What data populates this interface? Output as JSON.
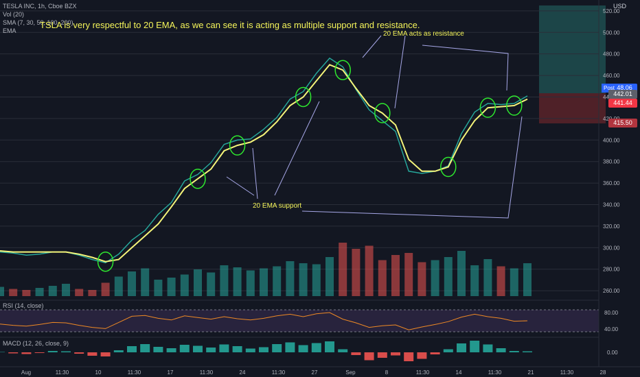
{
  "header": {
    "symbol_line": "TESLA INC, 1h, Cboe BZX",
    "vol_label": "Vol (20)",
    "sma_label": "SMA (7, 30, 50, 100, 200)",
    "ema_label": "EMA"
  },
  "annotations": {
    "title": "TSLA is very respectful to 20 EMA, as we can see it is acting as multiple support and resistance.",
    "resistance": "20 EMA acts as resistance",
    "support": "20 EMA support"
  },
  "price_axis": {
    "currency": "USD",
    "ticks": [
      "520.00",
      "500.00",
      "480.00",
      "460.00",
      "440.00",
      "420.00",
      "400.00",
      "380.00",
      "360.00",
      "340.00",
      "320.00",
      "300.00",
      "280.00",
      "260.00"
    ]
  },
  "price_tags": [
    {
      "label": "Post",
      "value": "448.06",
      "color": "#2962ff"
    },
    {
      "label": "",
      "value": "442.01",
      "color": "#5d606b"
    },
    {
      "label": "",
      "value": "441.44",
      "color": "#f23645"
    },
    {
      "label": "",
      "value": "415.50",
      "color": "#b2353f"
    }
  ],
  "rsi": {
    "label": "RSI (14, close)",
    "ticks": [
      "80.00",
      "40.00"
    ]
  },
  "macd": {
    "label": "MACD (12, 26, close, 9)",
    "ticks": [
      "0.00"
    ]
  },
  "time_axis": {
    "ticks": [
      "Aug",
      "11:30",
      "10",
      "11:30",
      "17",
      "11:30",
      "24",
      "11:30",
      "27",
      "Sep",
      "8",
      "11:30",
      "14",
      "11:30",
      "21",
      "11:30",
      "28"
    ]
  },
  "chart_data": {
    "type": "line",
    "title": "TSLA is very respectful to 20 EMA, as we can see it is acting as multiple support and resistance.",
    "ylim": [
      255,
      525
    ],
    "x": [
      0,
      5,
      10,
      15,
      20,
      25,
      30,
      35,
      40,
      45,
      50,
      55,
      60,
      65,
      70,
      75,
      80,
      85,
      90,
      95,
      100,
      105,
      110,
      115,
      120,
      125,
      130,
      135,
      140,
      145,
      150,
      155,
      160,
      165,
      170,
      175,
      180,
      185,
      190,
      195,
      200
    ],
    "series": [
      {
        "name": "",
        "values": [
          296,
          295,
          293,
          294,
          296,
          296,
          293,
          289,
          286,
          294,
          307,
          316,
          331,
          342,
          362,
          368,
          379,
          396,
          400,
          401,
          410,
          421,
          438,
          445,
          462,
          476,
          468,
          447,
          428,
          418,
          408,
          371,
          369,
          371,
          376,
          406,
          426,
          434,
          433,
          434,
          441
        ]
      },
      {
        "name": "EMA",
        "values": [
          297,
          296,
          296,
          296,
          296,
          296,
          294,
          291,
          287,
          289,
          300,
          311,
          322,
          338,
          355,
          364,
          373,
          390,
          395,
          398,
          405,
          417,
          432,
          440,
          455,
          470,
          465,
          448,
          432,
          425,
          414,
          382,
          371,
          371,
          375,
          400,
          418,
          430,
          431,
          432,
          438
        ]
      }
    ],
    "volume_values": [
      9,
      7,
      6,
      8,
      10,
      12,
      7,
      6,
      13,
      19,
      24,
      27,
      16,
      18,
      21,
      26,
      23,
      30,
      28,
      25,
      27,
      29,
      34,
      32,
      31,
      38,
      52,
      46,
      49,
      35,
      40,
      42,
      33,
      35,
      38,
      44,
      30,
      36,
      29,
      27,
      32
    ],
    "rsi_values": [
      52,
      49,
      47,
      51,
      56,
      55,
      49,
      44,
      41,
      56,
      71,
      73,
      66,
      62,
      72,
      68,
      64,
      70,
      65,
      62,
      66,
      72,
      76,
      70,
      77,
      80,
      64,
      55,
      44,
      48,
      50,
      38,
      45,
      51,
      58,
      69,
      76,
      70,
      66,
      59,
      60
    ],
    "macd_values": [
      0.1,
      -0.3,
      -0.5,
      -0.2,
      0.4,
      0.3,
      -0.4,
      -1.0,
      -1.2,
      0.6,
      1.8,
      2.4,
      1.6,
      1.2,
      2.2,
      1.9,
      1.4,
      2.3,
      1.8,
      1.1,
      1.5,
      2.4,
      2.9,
      2.1,
      2.7,
      3.2,
      0.9,
      -0.8,
      -2.3,
      -1.6,
      -0.9,
      -2.6,
      -1.9,
      -0.6,
      0.9,
      2.6,
      3.4,
      2.3,
      1.2,
      0.4,
      0.3
    ]
  }
}
